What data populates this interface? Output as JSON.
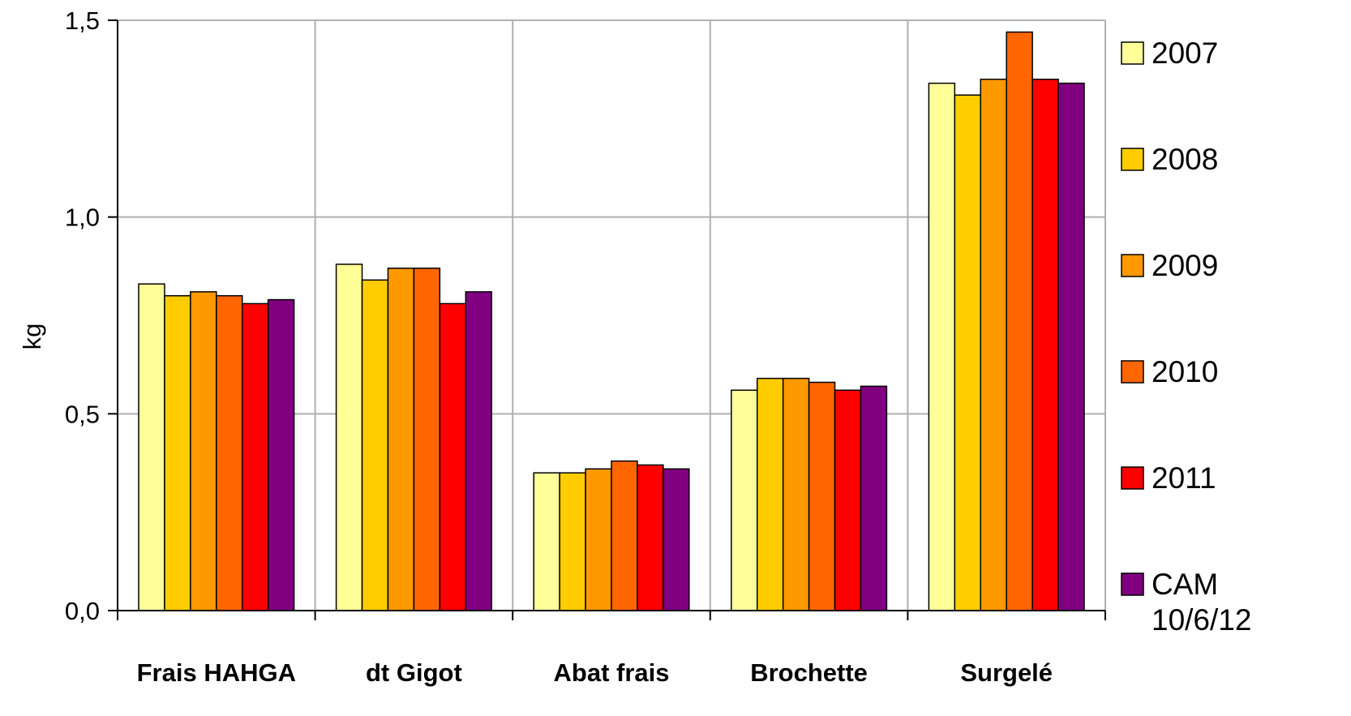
{
  "chart_data": {
    "type": "bar",
    "ylabel": "kg",
    "xlabel": "",
    "ylim": [
      0,
      1.5
    ],
    "yticks": [
      "0,0",
      "0,5",
      "1,0",
      "1,5"
    ],
    "ytick_values": [
      0,
      0.5,
      1.0,
      1.5
    ],
    "categories": [
      "Frais HAHGA",
      "dt Gigot",
      "Abat frais",
      "Brochette",
      "Surgelé"
    ],
    "grid": true,
    "legend_position": "right",
    "series": [
      {
        "name": "2007",
        "color": "#FFFF99",
        "values": [
          0.83,
          0.88,
          0.35,
          0.56,
          1.34
        ]
      },
      {
        "name": "2008",
        "color": "#FFCC00",
        "values": [
          0.8,
          0.84,
          0.35,
          0.59,
          1.31
        ]
      },
      {
        "name": "2009",
        "color": "#FF9900",
        "values": [
          0.81,
          0.87,
          0.36,
          0.59,
          1.35
        ]
      },
      {
        "name": "2010",
        "color": "#FF6600",
        "values": [
          0.8,
          0.87,
          0.38,
          0.58,
          1.47
        ]
      },
      {
        "name": "2011",
        "color": "#FF0000",
        "values": [
          0.78,
          0.78,
          0.37,
          0.56,
          1.35
        ]
      },
      {
        "name": "CAM 10/6/12",
        "label_lines": [
          "CAM",
          "10/6/12"
        ],
        "color": "#800080",
        "values": [
          0.79,
          0.81,
          0.36,
          0.57,
          1.34
        ]
      }
    ]
  }
}
